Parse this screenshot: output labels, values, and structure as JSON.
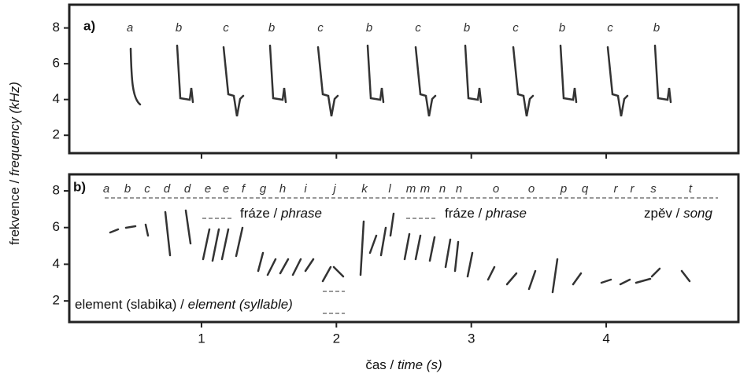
{
  "chart_data": [
    {
      "type": "spectrogram",
      "panel_label": "a)",
      "element_labels": [
        "a",
        "b",
        "c",
        "b",
        "c",
        "b",
        "c",
        "b",
        "c",
        "b",
        "c",
        "b"
      ],
      "ylim": [
        1,
        9.3
      ],
      "yticks": [
        2,
        4,
        6,
        8
      ],
      "ylabel": [
        {
          "text": "frekvence / "
        },
        {
          "text": "frequency (kHz)",
          "style": "italic"
        }
      ]
    },
    {
      "type": "spectrogram",
      "panel_label": "b)",
      "element_labels": [
        "a",
        "b",
        "c",
        "d",
        "d",
        "e",
        "e",
        "f",
        "g",
        "h",
        "i",
        "j",
        "k",
        "l",
        "m",
        "m",
        "n",
        "n",
        "o",
        "o",
        "p",
        "q",
        "r",
        "r",
        "s",
        "t"
      ],
      "ylim": [
        0.85,
        8.9
      ],
      "yticks": [
        2,
        4,
        6,
        8
      ],
      "xlim": [
        0.02,
        4.98
      ],
      "xticks": [
        1,
        2,
        3,
        4
      ],
      "xlabel": [
        {
          "text": "čas / "
        },
        {
          "text": "time (s)",
          "style": "italic"
        }
      ],
      "annotations": [
        [
          {
            "text": "fráze / "
          },
          {
            "text": "phrase",
            "style": "italic"
          }
        ],
        [
          {
            "text": "fráze / "
          },
          {
            "text": "phrase",
            "style": "italic"
          }
        ],
        [
          {
            "text": "zpěv / "
          },
          {
            "text": "song",
            "style": "italic"
          }
        ],
        [
          {
            "text": "element (slabika) / "
          },
          {
            "text": "element (syllable)",
            "style": "italic"
          }
        ]
      ]
    }
  ]
}
